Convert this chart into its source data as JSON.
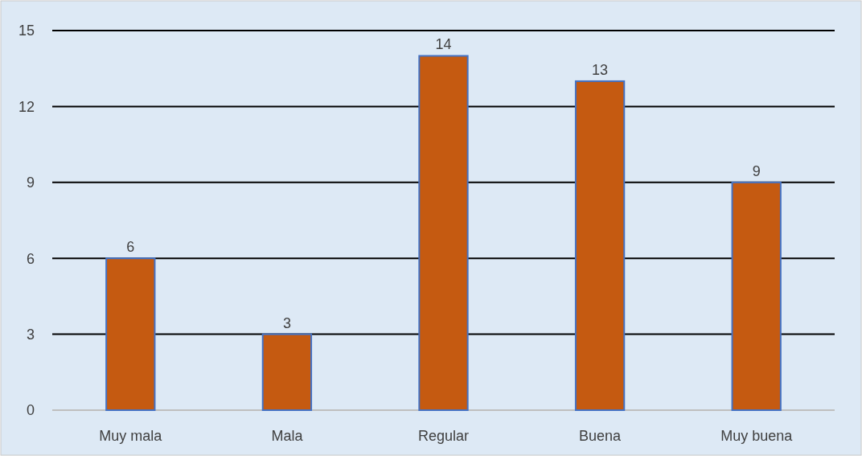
{
  "chart_data": {
    "type": "bar",
    "categories": [
      "Muy mala",
      "Mala",
      "Regular",
      "Buena",
      "Muy buena"
    ],
    "values": [
      6,
      3,
      14,
      13,
      9
    ],
    "color": "#c55a11",
    "ylim": [
      0,
      15
    ],
    "yticks": [
      0,
      3,
      6,
      9,
      12,
      15
    ],
    "grid": "y",
    "data_labels": true
  }
}
